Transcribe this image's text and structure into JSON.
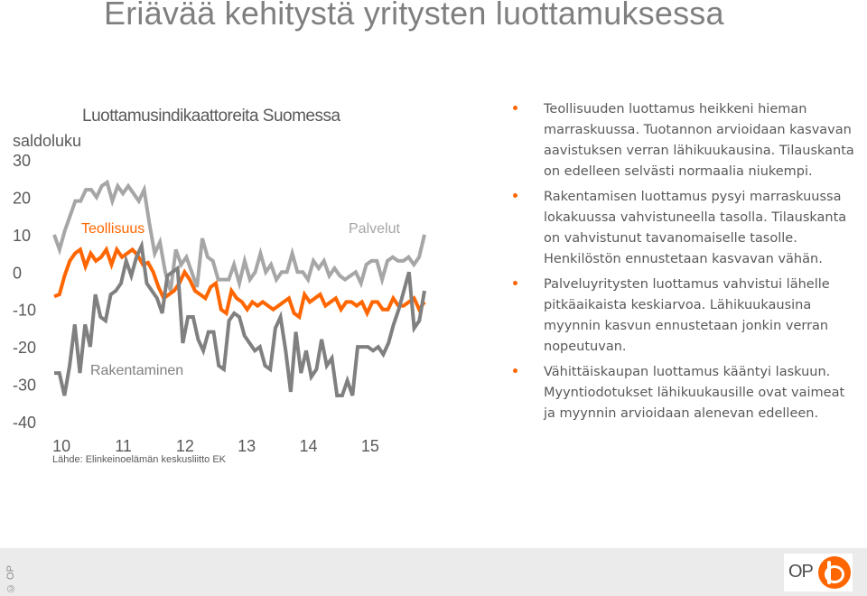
{
  "slide": {
    "title": "Eriävää kehitystä yritysten luottamuksessa",
    "source": "Lähde: Elinkeinoelämän keskusliitto EK",
    "copyright": "© OP",
    "logo_text": "OP"
  },
  "bullets": [
    "Teollisuuden luottamus heikkeni hieman marraskuussa. Tuotannon arvioidaan kasvavan aavistuksen verran lähikuukausina. Tilauskanta on edelleen selvästi normaalia niukempi.",
    "Rakentamisen luottamus pysyi marraskuussa lokakuussa vahvistuneella tasolla. Tilauskanta on vahvistunut tavanomaiselle tasolle. Henkilöstön ennustetaan kasvavan vähän.",
    "Palveluyritysten luottamus vahvistui lähelle pitkäaikaista keskiarvoa. Lähikuukausina myynnin kasvun ennustetaan jonkin verran nopeutuvan.",
    "Vähittäiskaupan luottamus kääntyi laskuun. Myyntiodotukset lähikuukausille ovat vaimeat ja myynnin arvioidaan alenevan edelleen."
  ],
  "chart_data": {
    "type": "line",
    "title": "Luottamusindikaattoreita Suomessa",
    "ylabel": "saldoluku",
    "xlabel": "",
    "ylim": [
      -40,
      30
    ],
    "xlim": [
      2009.92,
      2015.92
    ],
    "yticks": [
      "30",
      "20",
      "10",
      "0",
      "-10",
      "-20",
      "-30",
      "-40"
    ],
    "xticks": [
      "10",
      "11",
      "12",
      "13",
      "14",
      "15"
    ],
    "grid": false,
    "legend": "inline labels",
    "series": [
      {
        "name": "Teollisuus",
        "color": "#ff6600",
        "values": [
          -6.5,
          -6,
          -1,
          3,
          5,
          6,
          1.5,
          5,
          3,
          4,
          6,
          2,
          6,
          4,
          5,
          6,
          4.5,
          2,
          2.5,
          0,
          -4,
          -7,
          -6,
          -5,
          -3,
          0,
          -2,
          -5,
          -6,
          -7,
          -4,
          -3,
          -10,
          -11,
          -5,
          -7,
          -8,
          -10,
          -8,
          -9,
          -8,
          -9,
          -10,
          -9,
          -8,
          -7,
          -11,
          -12,
          -6,
          -8,
          -7,
          -6,
          -9,
          -8,
          -7,
          -10,
          -8,
          -8,
          -9,
          -8,
          -11,
          -8,
          -8,
          -10,
          -10,
          -7,
          -9,
          -9,
          -8,
          -7,
          -10,
          -8
        ]
      },
      {
        "name": "Palvelut",
        "color": "#a6a6a6",
        "values": [
          10,
          6,
          11,
          15,
          19,
          19,
          22,
          22,
          20,
          23,
          24,
          19,
          23,
          21,
          23,
          21,
          19,
          22,
          13,
          5,
          8,
          0,
          -5,
          6,
          2,
          4,
          0,
          -4,
          9,
          4,
          3,
          -2,
          -2,
          -2,
          2,
          -3,
          3,
          -2,
          0,
          5,
          0,
          2,
          -2,
          0,
          0,
          5,
          0,
          0,
          -2,
          3,
          1,
          3,
          -1,
          1,
          -1,
          -2,
          -1,
          0,
          -3,
          2,
          3,
          3,
          -2,
          3,
          4,
          3,
          3,
          4,
          2,
          4,
          10
        ]
      },
      {
        "name": "Rakentaminen",
        "color": "#808080",
        "values": [
          -27,
          -27,
          -33,
          -25,
          -14,
          -27,
          -14,
          -20,
          -6,
          -12,
          -13,
          -6,
          -5,
          -3,
          3,
          -1,
          4,
          7,
          -3,
          -5,
          -7,
          -11,
          -1,
          0,
          1,
          -19,
          -12,
          -12,
          -18,
          -21,
          -16,
          -16,
          -25,
          -26,
          -13,
          -11,
          -12,
          -17,
          -19,
          -21,
          -20,
          -25,
          -26,
          -15,
          -12,
          -21,
          -32,
          -16,
          -27,
          -21,
          -28,
          -26,
          -18,
          -25,
          -23,
          -33,
          -33,
          -29,
          -33,
          -20,
          -20,
          -20,
          -21,
          -20,
          -22,
          -19,
          -14,
          -10,
          -5,
          0,
          -15,
          -13,
          -5
        ]
      }
    ],
    "labels": {
      "teollisuus": "Teollisuus",
      "palvelut": "Palvelut",
      "rakentaminen": "Rakentaminen"
    }
  }
}
